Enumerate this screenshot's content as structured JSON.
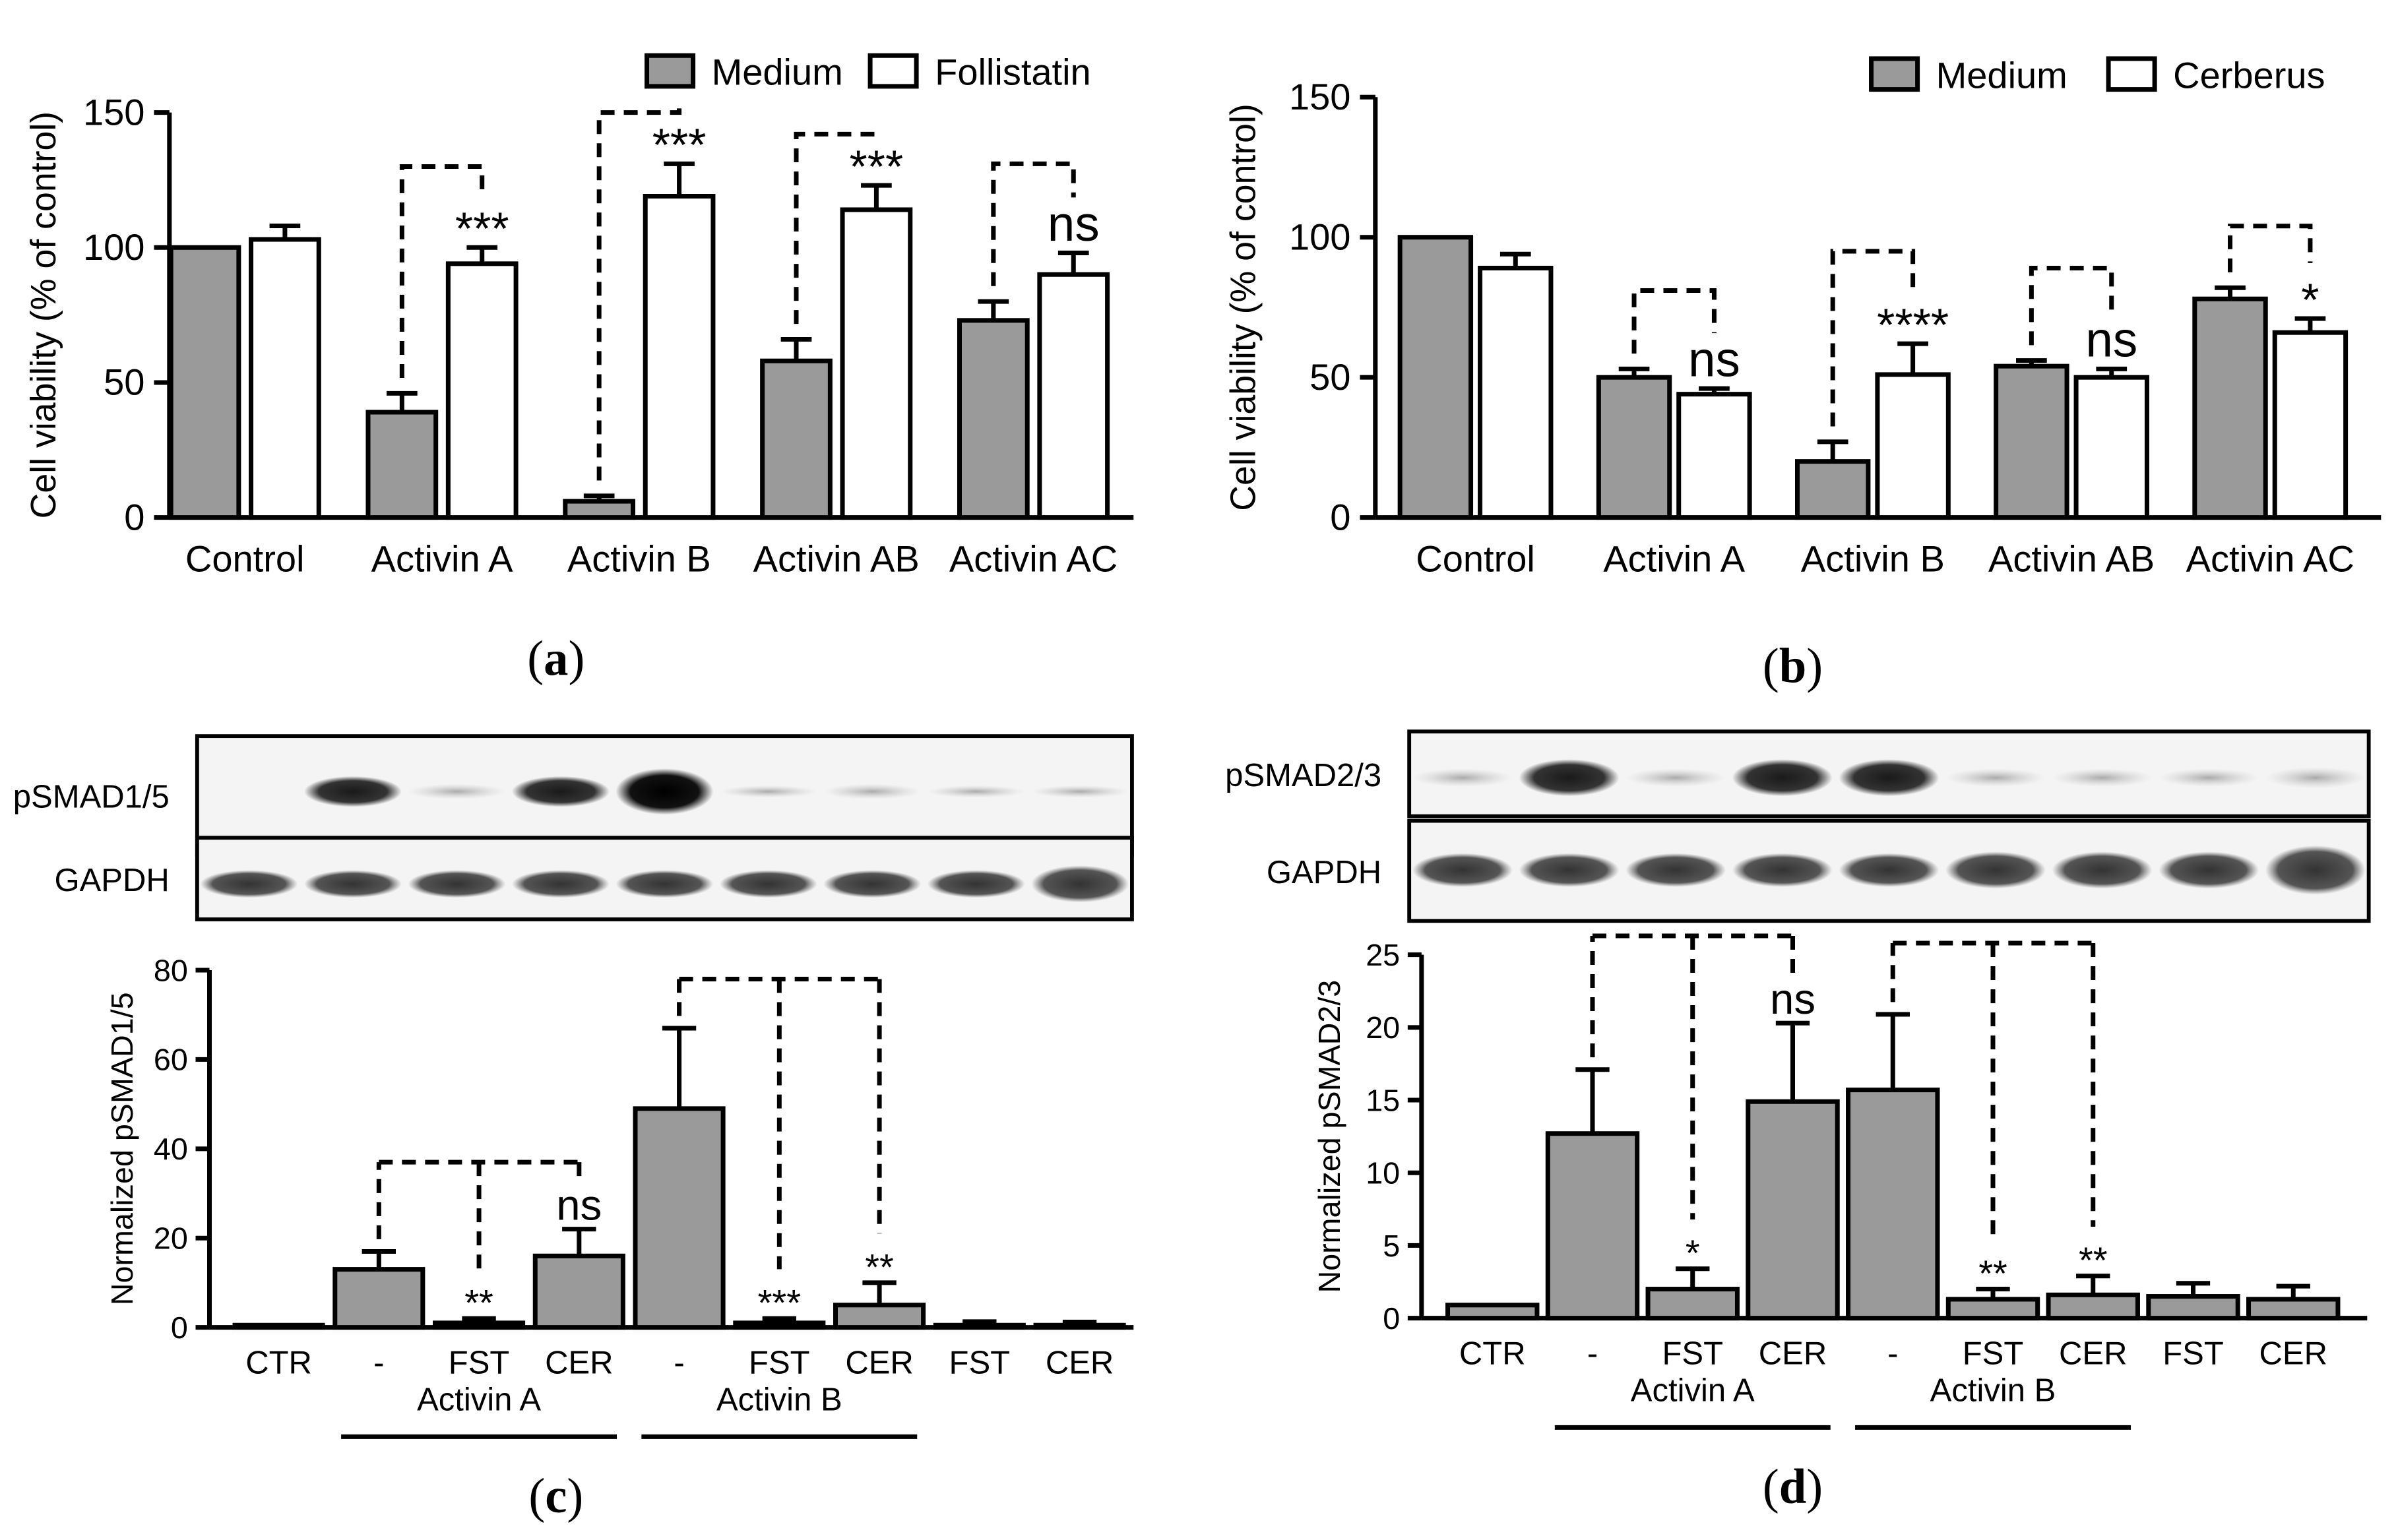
{
  "colors": {
    "medium_fill": "#9a9a9b",
    "treatment_fill": "#ffffff",
    "stroke": "#000000"
  },
  "panel_labels": {
    "a": "(a)",
    "b": "(b)",
    "c": "(c)",
    "d": "(d)"
  },
  "chart_data": [
    {
      "id": "a",
      "type": "bar",
      "ylabel": "Cell viability (% of control)",
      "ylim": [
        0,
        150
      ],
      "yticks": [
        0,
        50,
        100,
        150
      ],
      "legend": {
        "position": "top-right",
        "entries": [
          "Medium",
          "Follistatin"
        ]
      },
      "categories": [
        "Control",
        "Activin A",
        "Activin B",
        "Activin AB",
        "Activin AC"
      ],
      "series": [
        {
          "name": "Medium",
          "values": [
            100,
            39,
            6,
            58,
            73
          ],
          "errors": [
            0,
            7,
            2,
            8,
            7
          ]
        },
        {
          "name": "Follistatin",
          "values": [
            103,
            94,
            119,
            114,
            90
          ],
          "errors": [
            5,
            6,
            12,
            9,
            8
          ]
        }
      ],
      "significance": [
        "",
        "***",
        "***",
        "***",
        "ns"
      ],
      "brackets": [
        {
          "from": 1,
          "to": 1,
          "y": 130
        },
        {
          "from": 2,
          "to": 2,
          "y": 150
        },
        {
          "from": 3,
          "to": 3,
          "y": 142
        },
        {
          "from": 4,
          "to": 4,
          "y": 131
        }
      ]
    },
    {
      "id": "b",
      "type": "bar",
      "ylabel": "Cell viability (% of control)",
      "ylim": [
        0,
        150
      ],
      "yticks": [
        0,
        50,
        100,
        150
      ],
      "legend": {
        "position": "top-right",
        "entries": [
          "Medium",
          "Cerberus"
        ]
      },
      "categories": [
        "Control",
        "Activin A",
        "Activin B",
        "Activin AB",
        "Activin AC"
      ],
      "series": [
        {
          "name": "Medium",
          "values": [
            100,
            50,
            20,
            54,
            78
          ],
          "errors": [
            0,
            3,
            7,
            2,
            4
          ]
        },
        {
          "name": "Cerberus",
          "values": [
            89,
            44,
            51,
            50,
            66
          ],
          "errors": [
            5,
            2,
            11,
            3,
            5
          ]
        }
      ],
      "significance": [
        "",
        "ns",
        "****",
        "ns",
        "*"
      ],
      "brackets": [
        {
          "from": 1,
          "to": 1,
          "y": 81
        },
        {
          "from": 2,
          "to": 2,
          "y": 95
        },
        {
          "from": 3,
          "to": 3,
          "y": 89
        },
        {
          "from": 4,
          "to": 4,
          "y": 104
        }
      ]
    },
    {
      "id": "c",
      "type": "bar",
      "ylabel": "Normalized pSMAD1/5",
      "ylim": [
        0,
        80
      ],
      "yticks": [
        0,
        20,
        40,
        60,
        80
      ],
      "categories": [
        "CTR",
        "-",
        "FST",
        "CER",
        "-",
        "FST",
        "CER",
        "FST",
        "CER"
      ],
      "values": [
        0.5,
        13,
        1,
        16,
        49,
        1,
        5,
        0.5,
        0.5
      ],
      "errors": [
        0,
        4,
        1,
        6,
        18,
        1,
        5,
        0.8,
        0.7
      ],
      "significance": [
        "",
        "",
        "**",
        "ns",
        "",
        "***",
        "**",
        "",
        ""
      ],
      "groups": [
        {
          "label": "Activin A",
          "from": 1,
          "to": 3
        },
        {
          "label": "Activin B",
          "from": 4,
          "to": 6
        }
      ],
      "brackets": [
        {
          "ref": 1,
          "targets": [
            2,
            3
          ],
          "y": 37
        },
        {
          "ref": 4,
          "targets": [
            5,
            6
          ],
          "y": 78
        }
      ],
      "blot": {
        "rows": [
          "pSMAD1/5",
          "GAPDH"
        ]
      }
    },
    {
      "id": "d",
      "type": "bar",
      "ylabel": "Normalized pSMAD2/3",
      "ylim": [
        0,
        25
      ],
      "yticks": [
        0,
        5,
        10,
        15,
        20,
        25
      ],
      "categories": [
        "CTR",
        "-",
        "FST",
        "CER",
        "-",
        "FST",
        "CER",
        "FST",
        "CER"
      ],
      "values": [
        0.9,
        12.7,
        2,
        14.9,
        15.7,
        1.3,
        1.6,
        1.5,
        1.3
      ],
      "errors": [
        0,
        4.4,
        1.4,
        5.4,
        5.2,
        0.7,
        1.3,
        0.9,
        0.9
      ],
      "significance": [
        "",
        "",
        "*",
        "ns",
        "",
        "**",
        "**",
        "",
        ""
      ],
      "groups": [
        {
          "label": "Activin A",
          "from": 1,
          "to": 3
        },
        {
          "label": "Activin B",
          "from": 4,
          "to": 6
        }
      ],
      "brackets": [
        {
          "ref": 1,
          "targets": [
            2,
            3
          ],
          "y": 26.3
        },
        {
          "ref": 4,
          "targets": [
            5,
            6
          ],
          "y": 25.8
        }
      ],
      "blot": {
        "rows": [
          "pSMAD2/3",
          "GAPDH"
        ]
      }
    }
  ]
}
